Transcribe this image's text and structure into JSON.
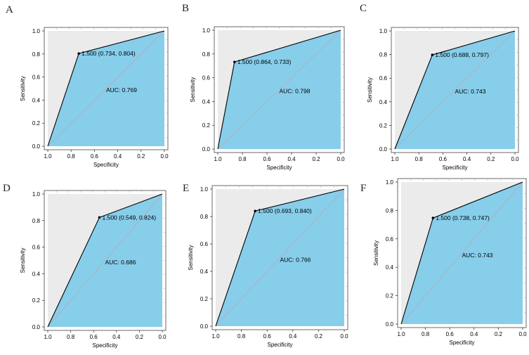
{
  "colors": {
    "auc_fill": "#87ceeb",
    "background_fill": "#ebebeb",
    "curve": "#000000",
    "diagonal": "#c8a0a0",
    "grid_tick": "#90c890"
  },
  "chart_data": [
    {
      "panel": "A",
      "type": "line",
      "xlabel": "Specificity",
      "ylabel": "Sensitivity",
      "xlim": [
        1.0,
        0.0
      ],
      "ylim": [
        0.0,
        1.0
      ],
      "xticks": [
        "1.0",
        "0.8",
        "0.6",
        "0.4",
        "0.2",
        "0.0"
      ],
      "yticks": [
        "0.0",
        "0.2",
        "0.4",
        "0.6",
        "0.8",
        "1.0"
      ],
      "roc_points": [
        {
          "specificity": 1.0,
          "sensitivity": 0.0
        },
        {
          "specificity": 0.734,
          "sensitivity": 0.804
        },
        {
          "specificity": 0.0,
          "sensitivity": 1.0
        }
      ],
      "threshold_label": "1.500 (0.734, 0.804)",
      "auc_label": "AUC: 0.769"
    },
    {
      "panel": "B",
      "type": "line",
      "xlabel": "Specificity",
      "ylabel": "Sensitivity",
      "xlim": [
        1.0,
        0.0
      ],
      "ylim": [
        0.0,
        1.0
      ],
      "xticks": [
        "1.0",
        "0.8",
        "0.6",
        "0.4",
        "0.2",
        "0.0"
      ],
      "yticks": [
        "0.0",
        "0.2",
        "0.4",
        "0.6",
        "0.8",
        "1.0"
      ],
      "roc_points": [
        {
          "specificity": 1.0,
          "sensitivity": 0.0
        },
        {
          "specificity": 0.864,
          "sensitivity": 0.733
        },
        {
          "specificity": 0.0,
          "sensitivity": 1.0
        }
      ],
      "threshold_label": "1.500 (0.864, 0.733)",
      "auc_label": "AUC: 0.798"
    },
    {
      "panel": "C",
      "type": "line",
      "xlabel": "Specificity",
      "ylabel": "Sensitivity",
      "xlim": [
        1.0,
        0.0
      ],
      "ylim": [
        0.0,
        1.0
      ],
      "xticks": [
        "1.0",
        "0.8",
        "0.6",
        "0.4",
        "0.2",
        "0.0"
      ],
      "yticks": [
        "0.0",
        "0.2",
        "0.4",
        "0.6",
        "0.8",
        "1.0"
      ],
      "roc_points": [
        {
          "specificity": 1.0,
          "sensitivity": 0.0
        },
        {
          "specificity": 0.688,
          "sensitivity": 0.797
        },
        {
          "specificity": 0.0,
          "sensitivity": 1.0
        }
      ],
      "threshold_label": "1.500 (0.688, 0.797)",
      "auc_label": "AUC: 0.743"
    },
    {
      "panel": "D",
      "type": "line",
      "xlabel": "Specificity",
      "ylabel": "Sensitivity",
      "xlim": [
        1.0,
        0.0
      ],
      "ylim": [
        0.0,
        1.0
      ],
      "xticks": [
        "1.0",
        "0.8",
        "0.6",
        "0.4",
        "0.2",
        "0.0"
      ],
      "yticks": [
        "0.0",
        "0.2",
        "0.4",
        "0.6",
        "0.8",
        "1.0"
      ],
      "roc_points": [
        {
          "specificity": 1.0,
          "sensitivity": 0.0
        },
        {
          "specificity": 0.549,
          "sensitivity": 0.824
        },
        {
          "specificity": 0.0,
          "sensitivity": 1.0
        }
      ],
      "threshold_label": "1.500 (0.549, 0.824)",
      "auc_label": "AUC: 0.686"
    },
    {
      "panel": "E",
      "type": "line",
      "xlabel": "Specificity",
      "ylabel": "Sensitivity",
      "xlim": [
        1.0,
        0.0
      ],
      "ylim": [
        0.0,
        1.0
      ],
      "xticks": [
        "1.0",
        "0.8",
        "0.6",
        "0.4",
        "0.2",
        "0.0"
      ],
      "yticks": [
        "0.0",
        "0.2",
        "0.4",
        "0.6",
        "0.8",
        "1.0"
      ],
      "roc_points": [
        {
          "specificity": 1.0,
          "sensitivity": 0.0
        },
        {
          "specificity": 0.693,
          "sensitivity": 0.84
        },
        {
          "specificity": 0.0,
          "sensitivity": 1.0
        }
      ],
      "threshold_label": "1.500 (0.693, 0.840)",
      "auc_label": "AUC: 0.766"
    },
    {
      "panel": "F",
      "type": "line",
      "xlabel": "Specificity",
      "ylabel": "Sensitivity",
      "xlim": [
        1.0,
        0.0
      ],
      "ylim": [
        0.0,
        1.0
      ],
      "xticks": [
        "1.0",
        "0.8",
        "0.6",
        "0.4",
        "0.2",
        "0.0"
      ],
      "yticks": [
        "0.0",
        "0.2",
        "0.4",
        "0.6",
        "0.8",
        "1.0"
      ],
      "roc_points": [
        {
          "specificity": 1.0,
          "sensitivity": 0.0
        },
        {
          "specificity": 0.738,
          "sensitivity": 0.747
        },
        {
          "specificity": 0.0,
          "sensitivity": 1.0
        }
      ],
      "threshold_label": "1.500 (0.738, 0.747)",
      "auc_label": "AUC: 0.743"
    }
  ]
}
